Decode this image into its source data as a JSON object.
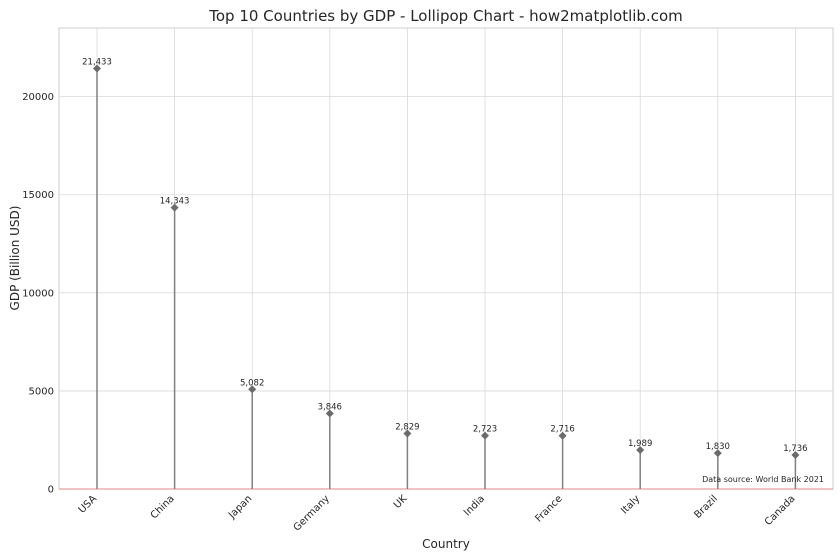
{
  "chart_data": {
    "type": "lollipop",
    "title": "Top 10 Countries by GDP - Lollipop Chart - how2matplotlib.com",
    "xlabel": "Country",
    "ylabel": "GDP (Billion USD)",
    "categories": [
      "USA",
      "China",
      "Japan",
      "Germany",
      "UK",
      "India",
      "France",
      "Italy",
      "Brazil",
      "Canada"
    ],
    "values": [
      21433,
      14343,
      5082,
      3846,
      2829,
      2723,
      2716,
      1989,
      1830,
      1736
    ],
    "value_labels": [
      "21,433",
      "14,343",
      "5,082",
      "3,846",
      "2,829",
      "2,723",
      "2,716",
      "1,989",
      "1,830",
      "1,736"
    ],
    "ylim": [
      0,
      23500
    ],
    "yticks": [
      0,
      5000,
      10000,
      15000,
      20000
    ],
    "grid": true,
    "stem_color": "#808080",
    "marker_color": "#6b6b6b",
    "marker": "diamond",
    "baseline_color": "#e8a0a0",
    "annotation": "Data source: World Bank 2021"
  }
}
